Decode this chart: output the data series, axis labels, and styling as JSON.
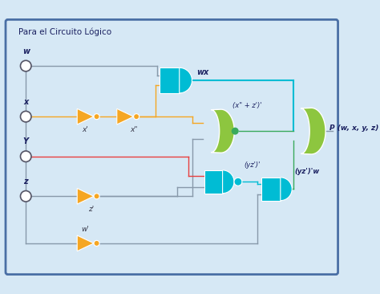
{
  "title": "Para el Circuito Lógico",
  "bg_color": "#d6e8f5",
  "border_color": "#4a6fa5",
  "gate_and_color": "#00bcd4",
  "gate_or_color": "#8dc63f",
  "not_color": "#f5a623",
  "wire_gray": "#8899aa",
  "wire_orange": "#f5a623",
  "wire_green": "#3aaa5c",
  "wire_teal": "#00bcd4",
  "wire_red": "#e84040",
  "dot_color": "#3aaa5c",
  "inputs": [
    "w",
    "x",
    "Y",
    "z"
  ],
  "output_label": "P (w, x, y, z)"
}
